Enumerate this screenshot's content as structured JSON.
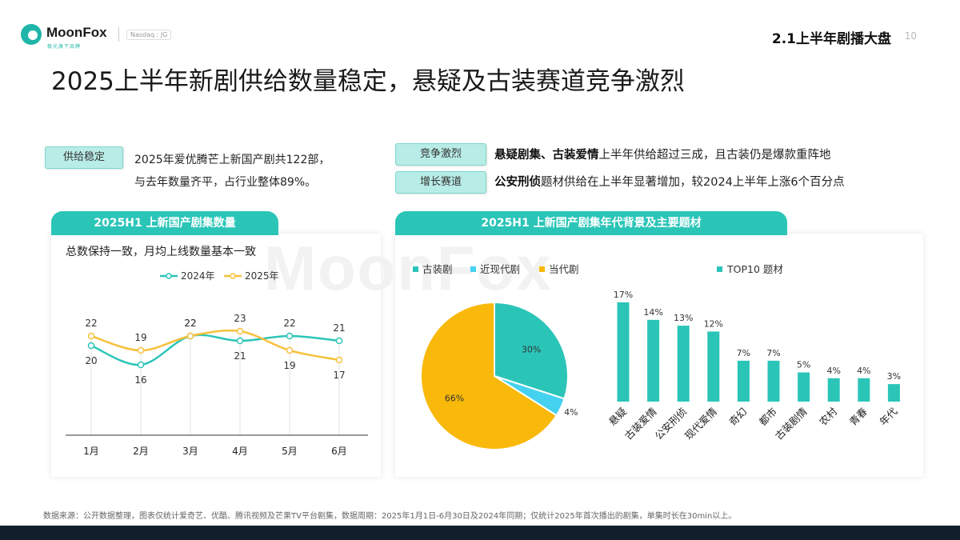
{
  "header": {
    "brand": "MoonFox",
    "brand_sub": "极光旗下品牌",
    "nasdaq": "Nasdaq : JG",
    "section": "2.1上半年剧播大盘",
    "page": "10"
  },
  "title": "2025上半年新剧供给数量稳定，悬疑及古装赛道竞争激烈",
  "supply": {
    "tag": "供给稳定",
    "line1": "2025年爱优腾芒上新国产剧共122部，",
    "line2": "与去年数量齐平，占行业整体89%。"
  },
  "competition": {
    "tag": "竞争激烈",
    "bold": "悬疑剧集、古装爱情",
    "rest": "上半年供给超过三成，且古装仍是爆款重阵地"
  },
  "growth": {
    "tag": "增长赛道",
    "bold": "公安刑侦",
    "rest": "题材供给在上半年显著增加，较2024上半年上涨6个百分点"
  },
  "left_panel": {
    "header": "2025H1  上新国产剧集数量",
    "subtitle": "总数保持一致，月均上线数量基本一致"
  },
  "right_panel": {
    "header": "2025H1  上新国产剧集年代背景及主要题材"
  },
  "watermark": "MoonFox",
  "footer": "数据来源：公开数据整理，图表仅统计爱奇艺、优酷、腾讯视频及芒果TV平台剧集，数据周期：2025年1月1日-6月30日及2024年同期；仅统计2025年首次播出的剧集，单集时长在30min以上。",
  "colors": {
    "teal": "#2bc5b8",
    "yellow": "#f9b90a",
    "cyan": "#45d2f0",
    "line2024": "#2bc5b8",
    "line2025": "#f6c13c"
  },
  "chart_data": [
    {
      "type": "line",
      "categories": [
        "1月",
        "2月",
        "3月",
        "4月",
        "5月",
        "6月"
      ],
      "series": [
        {
          "name": "2024年",
          "values": [
            20,
            16,
            22,
            21,
            22,
            21
          ]
        },
        {
          "name": "2025年",
          "values": [
            22,
            19,
            22,
            23,
            19,
            17
          ]
        }
      ],
      "legend": "top"
    },
    {
      "type": "pie",
      "labels": [
        "古装剧",
        "近现代剧",
        "当代剧"
      ],
      "values": [
        30,
        4,
        66
      ],
      "unit": "%",
      "legend": "top-left"
    },
    {
      "type": "bar",
      "series_name": "TOP10 题材",
      "categories": [
        "悬疑",
        "古装爱情",
        "公安刑侦",
        "现代爱情",
        "奇幻",
        "都市",
        "古装剧情",
        "农村",
        "青春",
        "年代"
      ],
      "values": [
        17,
        14,
        13,
        12,
        7,
        7,
        5,
        4,
        4,
        3
      ],
      "unit": "%",
      "legend": "top"
    }
  ]
}
